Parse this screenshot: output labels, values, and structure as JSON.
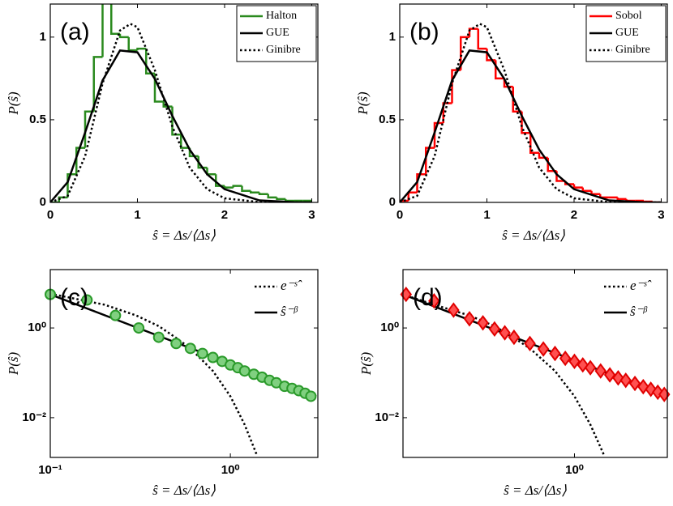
{
  "chart_data": [
    {
      "type": "histogram",
      "panel": "(a)",
      "xlabel": "ŝ = Δs/⟨Δs⟩",
      "ylabel": "P(ŝ)",
      "xlim": [
        0,
        3.07
      ],
      "ylim": [
        0,
        1.2
      ],
      "xticks": [
        0,
        1,
        2,
        3
      ],
      "yticks": [
        0,
        0.5,
        1
      ],
      "legend": "upper right",
      "legend_box": true,
      "histogram": {
        "name": "Halton",
        "color": "#2a8a1e",
        "bins": [
          0,
          0.1,
          0.2,
          0.3,
          0.4,
          0.5,
          0.6,
          0.7,
          0.8,
          0.9,
          1.0,
          1.1,
          1.2,
          1.3,
          1.4,
          1.5,
          1.6,
          1.7,
          1.8,
          1.9,
          2.0,
          2.1,
          2.2,
          2.3,
          2.4,
          2.5,
          2.6,
          2.7,
          2.8,
          2.9,
          3.0
        ],
        "counts": [
          0.0,
          0.03,
          0.17,
          0.33,
          0.55,
          0.88,
          1.28,
          1.02,
          1.0,
          0.92,
          0.93,
          0.78,
          0.61,
          0.58,
          0.41,
          0.33,
          0.28,
          0.21,
          0.17,
          0.1,
          0.09,
          0.1,
          0.07,
          0.06,
          0.05,
          0.03,
          0.02,
          0.01,
          0.01,
          0.01
        ]
      },
      "series": [
        {
          "name": "GUE",
          "color": "#000000",
          "style": "solid",
          "x": [
            0,
            0.2,
            0.4,
            0.6,
            0.8,
            1.0,
            1.2,
            1.4,
            1.6,
            1.8,
            2.0,
            2.4,
            2.8,
            3.0
          ],
          "values": [
            0,
            0.123,
            0.423,
            0.738,
            0.919,
            0.908,
            0.747,
            0.524,
            0.319,
            0.17,
            0.08,
            0.012,
            0.001,
            0.0003
          ]
        },
        {
          "name": "Ginibre",
          "color": "#000000",
          "style": "dotted",
          "x": [
            0,
            0.2,
            0.4,
            0.6,
            0.8,
            0.92,
            1.0,
            1.2,
            1.4,
            1.6,
            1.8,
            2.0,
            2.4,
            3.0
          ],
          "values": [
            0,
            0.04,
            0.28,
            0.72,
            1.04,
            1.08,
            1.06,
            0.8,
            0.46,
            0.21,
            0.08,
            0.025,
            0.002,
            0
          ]
        }
      ]
    },
    {
      "type": "histogram",
      "panel": "(b)",
      "xlabel": "ŝ = Δs/⟨Δs⟩",
      "ylabel": "P(ŝ)",
      "xlim": [
        0,
        3.07
      ],
      "ylim": [
        0,
        1.2
      ],
      "xticks": [
        0,
        1,
        2,
        3
      ],
      "yticks": [
        0,
        0.5,
        1
      ],
      "legend": "upper right",
      "legend_box": true,
      "histogram": {
        "name": "Sobol",
        "color": "#ff0000",
        "bins": [
          0,
          0.1,
          0.2,
          0.3,
          0.4,
          0.5,
          0.6,
          0.7,
          0.8,
          0.9,
          1.0,
          1.1,
          1.2,
          1.3,
          1.4,
          1.5,
          1.6,
          1.7,
          1.8,
          1.9,
          2.0,
          2.1,
          2.2,
          2.3,
          2.4,
          2.5,
          2.6,
          2.7,
          2.8,
          2.9,
          3.0
        ],
        "counts": [
          0.01,
          0.06,
          0.17,
          0.33,
          0.48,
          0.6,
          0.8,
          1.0,
          1.05,
          0.93,
          0.86,
          0.75,
          0.7,
          0.55,
          0.42,
          0.3,
          0.27,
          0.19,
          0.13,
          0.11,
          0.09,
          0.07,
          0.05,
          0.03,
          0.03,
          0.02,
          0.01,
          0.01,
          0.005,
          0
        ]
      },
      "series": [
        {
          "name": "GUE",
          "color": "#000000",
          "style": "solid",
          "x": [
            0,
            0.2,
            0.4,
            0.6,
            0.8,
            1.0,
            1.2,
            1.4,
            1.6,
            1.8,
            2.0,
            2.4,
            2.8,
            3.0
          ],
          "values": [
            0,
            0.123,
            0.423,
            0.738,
            0.919,
            0.908,
            0.747,
            0.524,
            0.319,
            0.17,
            0.08,
            0.012,
            0.001,
            0.0003
          ]
        },
        {
          "name": "Ginibre",
          "color": "#000000",
          "style": "dotted",
          "x": [
            0,
            0.2,
            0.4,
            0.6,
            0.8,
            0.92,
            1.0,
            1.2,
            1.4,
            1.6,
            1.8,
            2.0,
            2.4,
            3.0
          ],
          "values": [
            0,
            0.04,
            0.28,
            0.72,
            1.04,
            1.08,
            1.06,
            0.8,
            0.46,
            0.21,
            0.08,
            0.025,
            0.002,
            0
          ]
        }
      ]
    },
    {
      "type": "scatter",
      "panel": "(c)",
      "xlabel": "ŝ = Δs/⟨Δs⟩",
      "ylabel": "P(ŝ)",
      "xscale": "log",
      "yscale": "log",
      "xlim": [
        0.1,
        3.06
      ],
      "ylim": [
        0.0013,
        20
      ],
      "xticks": [
        {
          "value": 0.1,
          "label": "10⁻¹"
        },
        {
          "value": 1,
          "label": "10⁰"
        }
      ],
      "yticks": [
        {
          "value": 0.01,
          "label": "10⁻²"
        },
        {
          "value": 1,
          "label": "10⁰"
        }
      ],
      "legend": "upper right",
      "legend_box": false,
      "points": {
        "marker": "circle",
        "color": "#2a9a2a",
        "fill": "#80d080",
        "x": [
          0.1,
          0.16,
          0.23,
          0.31,
          0.4,
          0.5,
          0.6,
          0.7,
          0.8,
          0.9,
          1.0,
          1.1,
          1.2,
          1.35,
          1.5,
          1.65,
          1.8,
          2.0,
          2.2,
          2.4,
          2.6,
          2.8
        ],
        "values": [
          5.6,
          4.2,
          1.9,
          1.0,
          0.62,
          0.45,
          0.35,
          0.27,
          0.22,
          0.18,
          0.15,
          0.13,
          0.11,
          0.093,
          0.08,
          0.068,
          0.06,
          0.05,
          0.045,
          0.04,
          0.035,
          0.03
        ]
      },
      "series": [
        {
          "name": "e⁻ˢ̂",
          "color": "#000000",
          "style": "dotted",
          "x": [
            0.1,
            0.2,
            0.3,
            0.4,
            0.5,
            0.6,
            0.8,
            1.0,
            1.2,
            1.4
          ],
          "values": [
            5.8,
            3.3,
            1.9,
            1.1,
            0.6,
            0.35,
            0.11,
            0.03,
            0.007,
            0.0015
          ]
        },
        {
          "name": "ŝ⁻ᵝ",
          "color": "#000000",
          "style": "solid",
          "x": [
            0.1,
            3.0
          ],
          "values": [
            5.6,
            0.03
          ]
        }
      ]
    },
    {
      "type": "scatter",
      "panel": "(d)",
      "xlabel": "ŝ = Δs/⟨Δs⟩",
      "ylabel": "P(ŝ)",
      "xscale": "log",
      "yscale": "log",
      "xlim": [
        0.14,
        2.9
      ],
      "ylim": [
        0.0013,
        20
      ],
      "xticks": [
        {
          "value": 1,
          "label": "10⁰"
        }
      ],
      "yticks": [
        {
          "value": 0.01,
          "label": "10⁻²"
        },
        {
          "value": 1,
          "label": "10⁰"
        }
      ],
      "legend": "upper right",
      "legend_box": false,
      "points": {
        "marker": "diamond",
        "color": "#e00000",
        "fill": "#ff5050",
        "x": [
          0.145,
          0.2,
          0.25,
          0.3,
          0.35,
          0.4,
          0.45,
          0.5,
          0.6,
          0.7,
          0.8,
          0.9,
          1.0,
          1.1,
          1.2,
          1.35,
          1.5,
          1.65,
          1.8,
          2.0,
          2.2,
          2.4,
          2.6,
          2.8
        ],
        "values": [
          5.6,
          4.0,
          2.5,
          1.6,
          1.3,
          0.95,
          0.78,
          0.62,
          0.45,
          0.34,
          0.27,
          0.21,
          0.18,
          0.15,
          0.13,
          0.11,
          0.09,
          0.077,
          0.068,
          0.058,
          0.049,
          0.043,
          0.037,
          0.033
        ]
      },
      "series": [
        {
          "name": "e⁻ˢ̂",
          "color": "#000000",
          "style": "dotted",
          "x": [
            0.14,
            0.2,
            0.3,
            0.4,
            0.5,
            0.6,
            0.8,
            1.0,
            1.2,
            1.4
          ],
          "values": [
            5.6,
            3.3,
            1.9,
            1.1,
            0.6,
            0.35,
            0.11,
            0.03,
            0.007,
            0.0015
          ]
        },
        {
          "name": "ŝ⁻ᵝ",
          "color": "#000000",
          "style": "solid",
          "x": [
            0.14,
            2.9
          ],
          "values": [
            5.6,
            0.03
          ]
        }
      ]
    }
  ]
}
